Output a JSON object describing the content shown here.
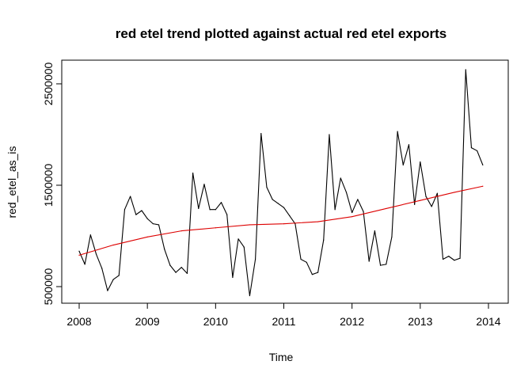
{
  "chart_data": {
    "type": "line",
    "title": "red etel trend plotted against actual red etel exports",
    "xlabel": "Time",
    "ylabel": "red_etel_as_is",
    "xlim": [
      2008,
      2014
    ],
    "ylim": [
      430000,
      2640000
    ],
    "x_ticks": [
      2008,
      2009,
      2010,
      2011,
      2012,
      2013,
      2014
    ],
    "y_ticks": [
      500000,
      1500000,
      2500000
    ],
    "y_tick_labels": [
      "500000",
      "1500000",
      "2500000"
    ],
    "grid": false,
    "series": [
      {
        "color": "#000000",
        "x": [
          2008.0,
          2008.0833,
          2008.1667,
          2008.25,
          2008.3333,
          2008.4167,
          2008.5,
          2008.5833,
          2008.6667,
          2008.75,
          2008.8333,
          2008.9167,
          2009.0,
          2009.0833,
          2009.1667,
          2009.25,
          2009.3333,
          2009.4167,
          2009.5,
          2009.5833,
          2009.6667,
          2009.75,
          2009.8333,
          2009.9167,
          2010.0,
          2010.0833,
          2010.1667,
          2010.25,
          2010.3333,
          2010.4167,
          2010.5,
          2010.5833,
          2010.6667,
          2010.75,
          2010.8333,
          2010.9167,
          2011.0,
          2011.0833,
          2011.1667,
          2011.25,
          2011.3333,
          2011.4167,
          2011.5,
          2011.5833,
          2011.6667,
          2011.75,
          2011.8333,
          2011.9167,
          2012.0,
          2012.0833,
          2012.1667,
          2012.25,
          2012.3333,
          2012.4167,
          2012.5,
          2012.5833,
          2012.6667,
          2012.75,
          2012.8333,
          2012.9167,
          2013.0,
          2013.0833,
          2013.1667,
          2013.25,
          2013.3333,
          2013.4167,
          2013.5,
          2013.5833,
          2013.6667,
          2013.75,
          2013.8333,
          2013.9167
        ],
        "values": [
          850000,
          720000,
          1010000,
          820000,
          680000,
          460000,
          570000,
          610000,
          1260000,
          1390000,
          1210000,
          1250000,
          1170000,
          1120000,
          1110000,
          870000,
          710000,
          640000,
          690000,
          630000,
          1620000,
          1270000,
          1510000,
          1260000,
          1260000,
          1330000,
          1210000,
          590000,
          970000,
          890000,
          410000,
          770000,
          2010000,
          1480000,
          1360000,
          1320000,
          1280000,
          1200000,
          1120000,
          770000,
          740000,
          620000,
          640000,
          960000,
          2000000,
          1260000,
          1570000,
          1430000,
          1230000,
          1360000,
          1240000,
          750000,
          1050000,
          710000,
          720000,
          990000,
          2030000,
          1700000,
          1900000,
          1310000,
          1730000,
          1390000,
          1290000,
          1420000,
          770000,
          800000,
          760000,
          780000,
          2640000,
          1870000,
          1840000,
          1700000
        ]
      },
      {
        "color": "#dd0000",
        "x": [
          2008.0,
          2008.5,
          2009.0,
          2009.5,
          2010.0,
          2010.5,
          2011.0,
          2011.5,
          2012.0,
          2012.5,
          2013.0,
          2013.5,
          2013.9167
        ],
        "values": [
          810000,
          910000,
          990000,
          1050000,
          1080000,
          1110000,
          1120000,
          1140000,
          1190000,
          1270000,
          1350000,
          1430000,
          1490000
        ]
      }
    ]
  }
}
